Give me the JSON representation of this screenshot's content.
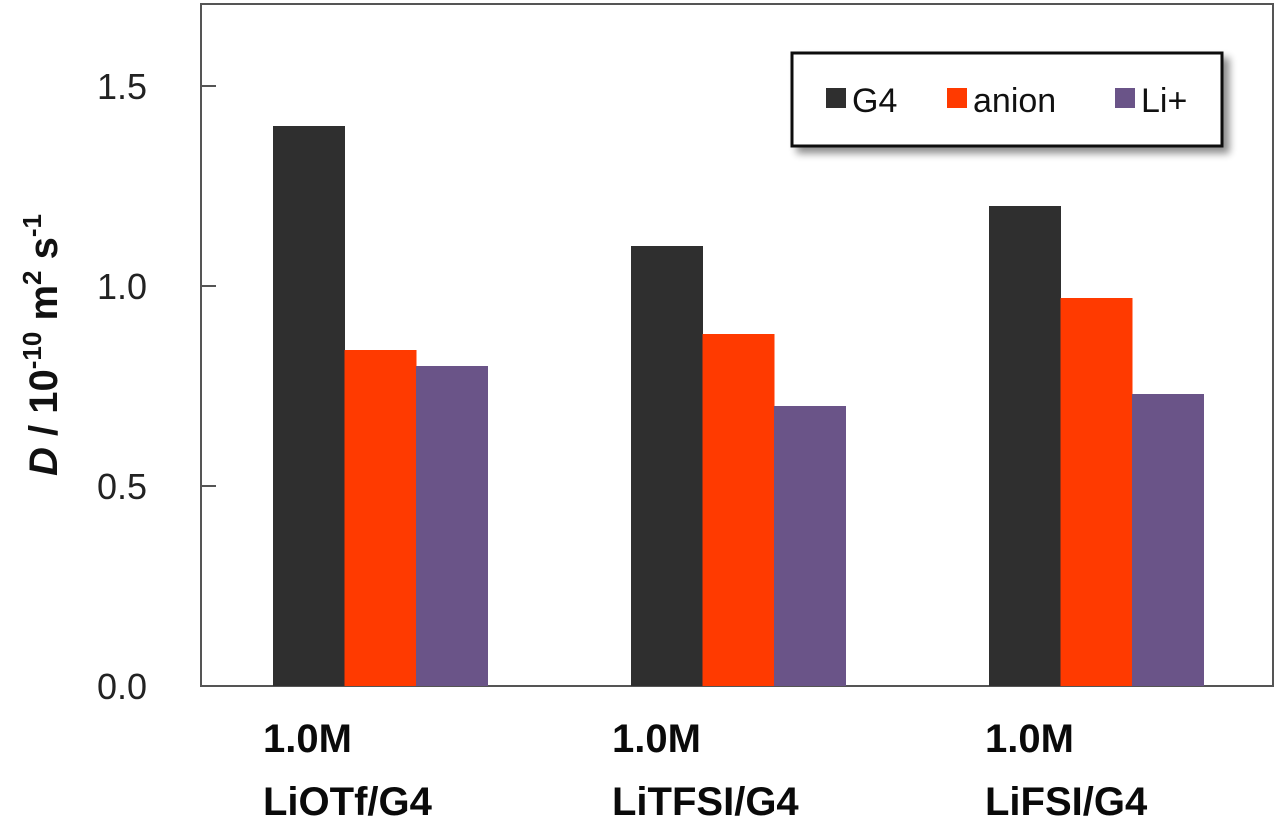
{
  "chart_data": {
    "type": "bar",
    "title": "",
    "xlabel": "",
    "ylabel": "D / 10^-10 m^2 s^-1",
    "ylabel_parts": {
      "symbol": "D",
      "sep": " / 10",
      "exp1": "-10",
      "unit1": " m",
      "exp2": "2",
      "unit2": " s",
      "exp3": "-1"
    },
    "ylim": [
      0,
      1.7
    ],
    "yticks": [
      0.0,
      0.5,
      1.0,
      1.5
    ],
    "ytick_labels": [
      "0.0",
      "0.5",
      "1.0",
      "1.5"
    ],
    "grid": false,
    "legend_position": "upper right",
    "categories": [
      "1.0M LiOTf/G4",
      "1.0M LiTFSI/G4",
      "1.0M LiFSI/G4"
    ],
    "category_lines": [
      [
        "1.0M",
        "LiOTf/G4"
      ],
      [
        "1.0M",
        "LiTFSI/G4"
      ],
      [
        "1.0M",
        "LiFSI/G4"
      ]
    ],
    "series": [
      {
        "name": "G4",
        "color": "#2f2f2f",
        "values": [
          1.4,
          1.1,
          1.2
        ]
      },
      {
        "name": "anion",
        "color": "#ff3a00",
        "values": [
          0.84,
          0.88,
          0.97
        ]
      },
      {
        "name": "Li+",
        "color": "#6a5488",
        "values": [
          0.8,
          0.7,
          0.73
        ]
      }
    ]
  }
}
